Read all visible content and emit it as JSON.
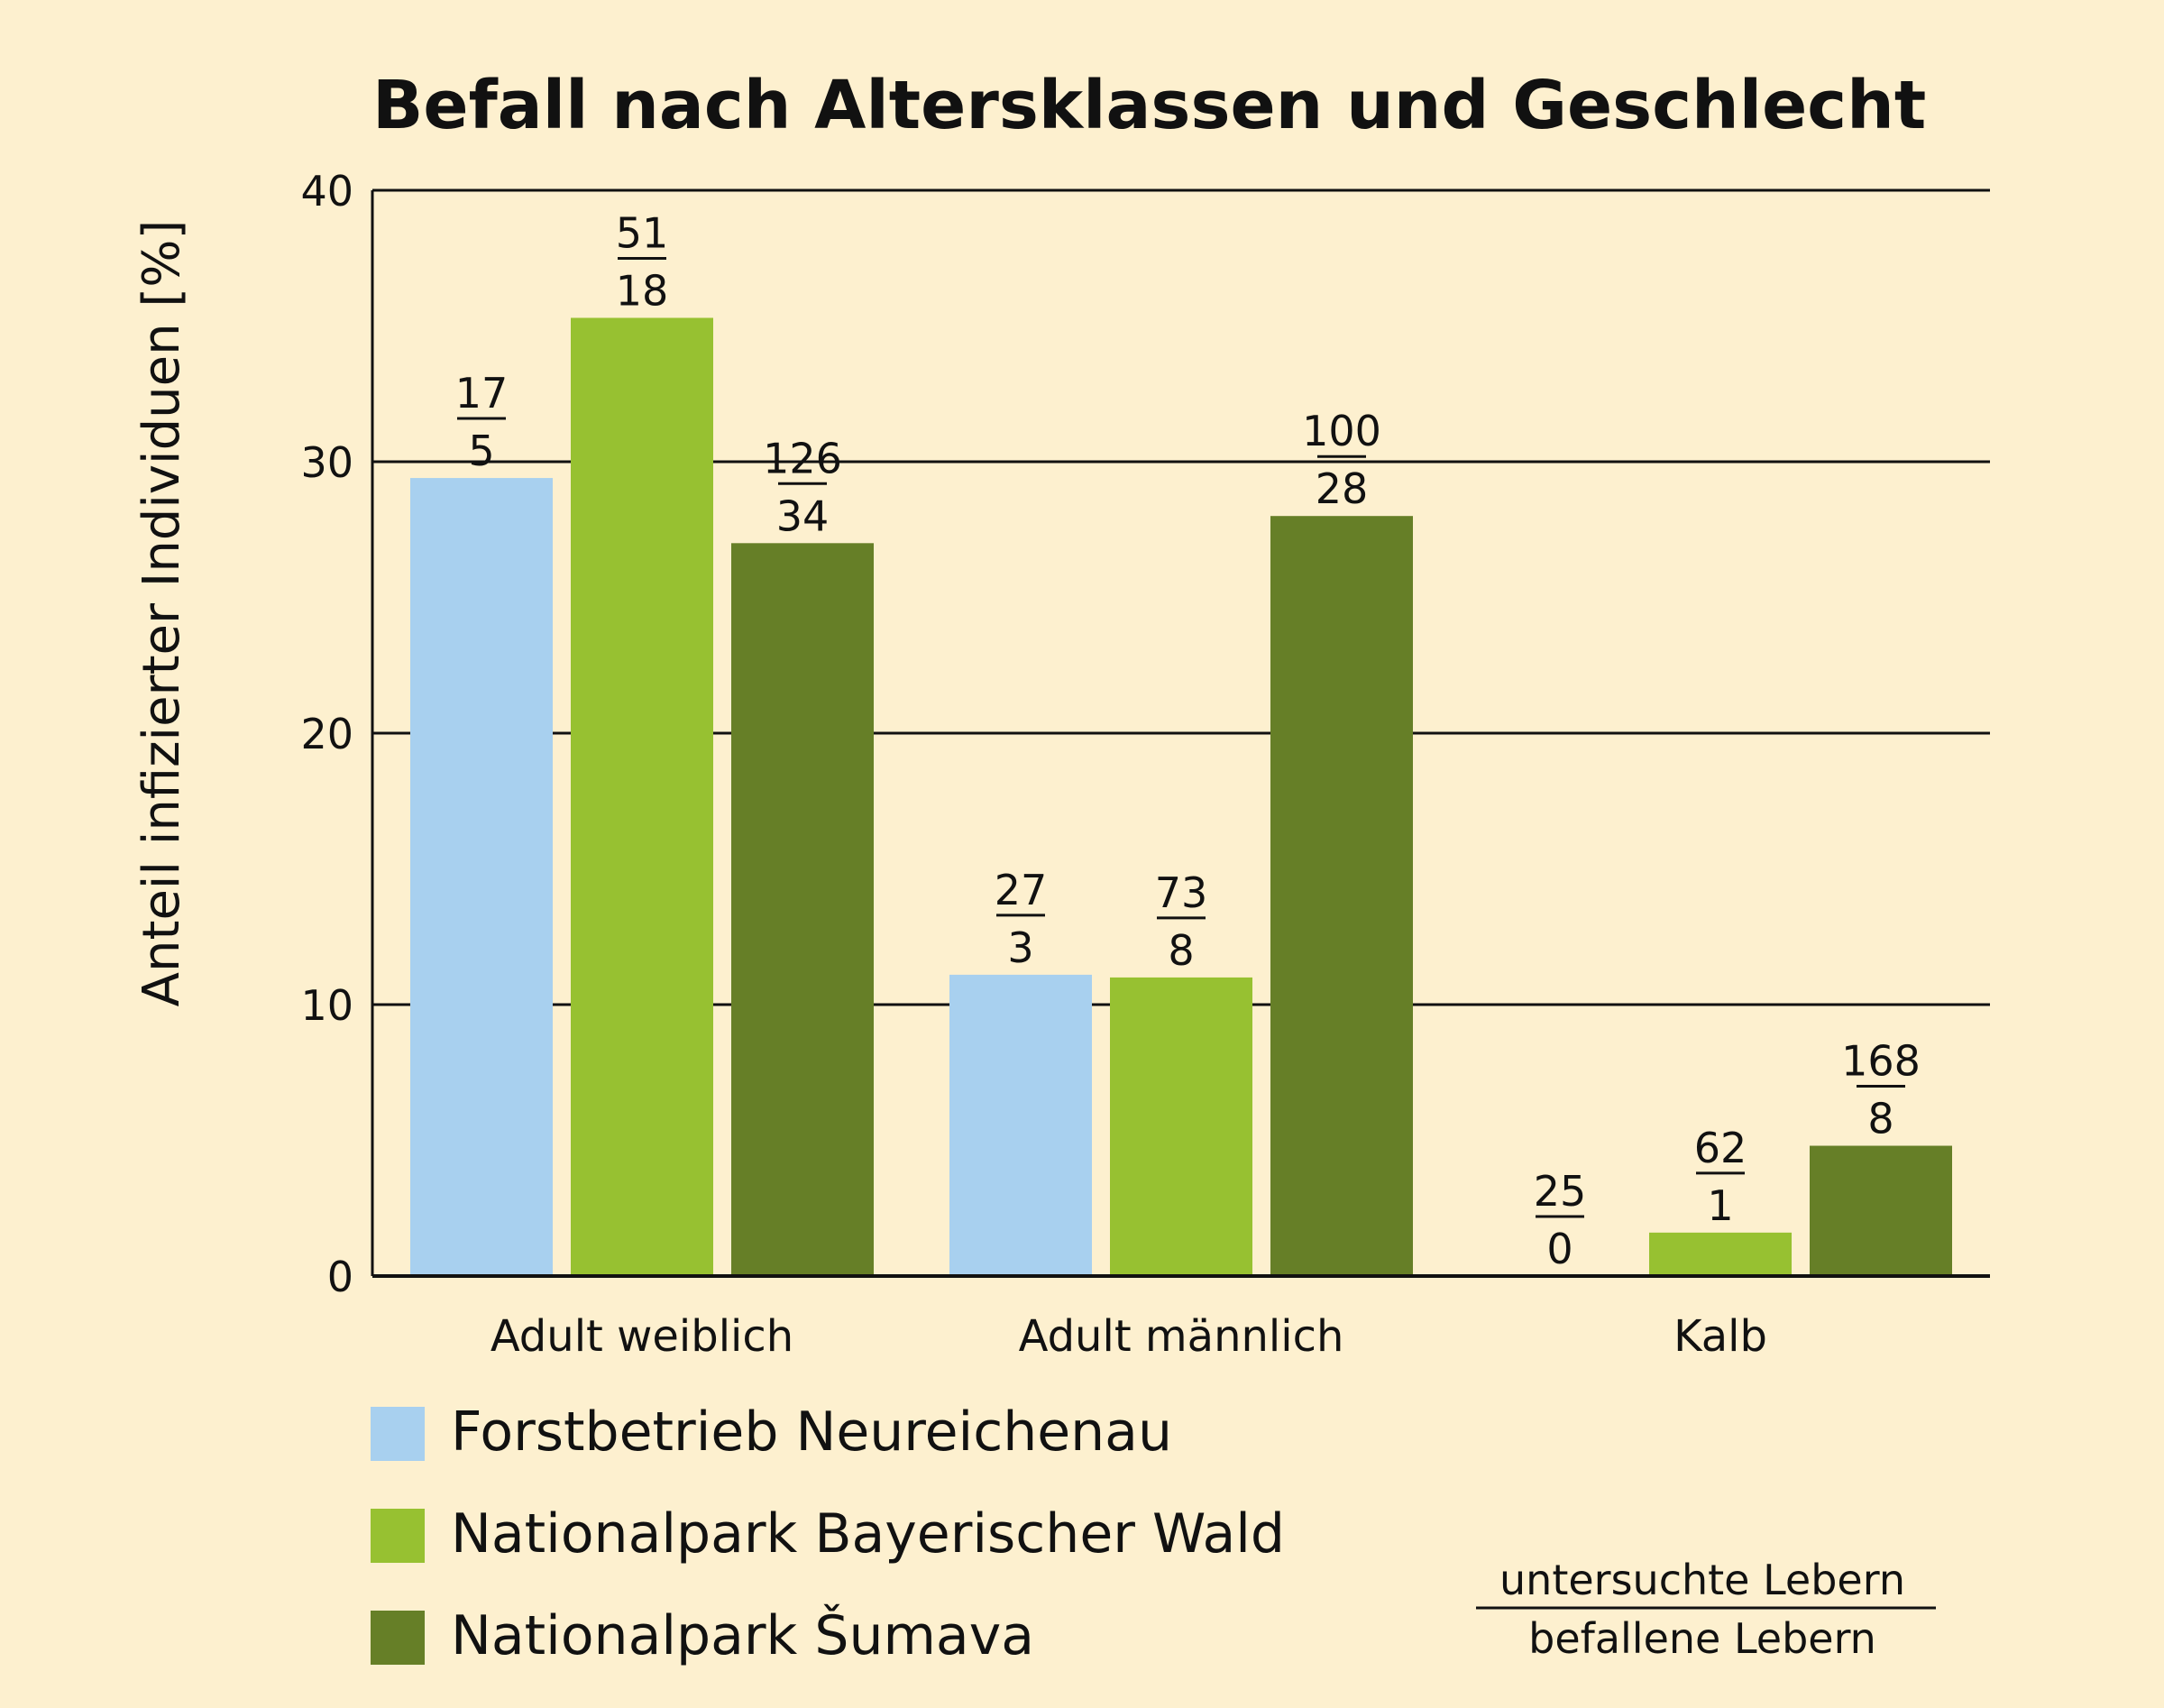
{
  "chart_data": {
    "type": "bar",
    "title": "Befall nach Altersklassen und Geschlecht",
    "ylabel": "Anteil infizierter Individuen [%]",
    "xlabel": "",
    "ylim": [
      0,
      40
    ],
    "yticks": [
      0,
      10,
      20,
      30,
      40
    ],
    "grid": true,
    "categories": [
      "Adult weiblich",
      "Adult männlich",
      "Kalb"
    ],
    "series": [
      {
        "name": "Forstbetrieb Neureichenau",
        "color": "#a8d0ef",
        "values": [
          29.4,
          11.1,
          0
        ],
        "examined": [
          "17",
          "27",
          "25"
        ],
        "infected": [
          "5",
          "3",
          "0"
        ]
      },
      {
        "name": "Nationalpark Bayerischer Wald",
        "color": "#97c131",
        "values": [
          35.3,
          11.0,
          1.6
        ],
        "examined": [
          "51",
          "73",
          "62"
        ],
        "infected": [
          "18",
          "8",
          "1"
        ]
      },
      {
        "name": "Nationalpark Šumava",
        "color": "#667f27",
        "values": [
          27.0,
          28.0,
          4.8
        ],
        "examined": [
          "126",
          "100",
          "168"
        ],
        "infected": [
          "34",
          "28",
          "8"
        ]
      }
    ],
    "legend_position": "bottom-left",
    "fraction_key": {
      "numerator": "untersuchte Lebern",
      "denominator": "befallene Lebern"
    }
  }
}
